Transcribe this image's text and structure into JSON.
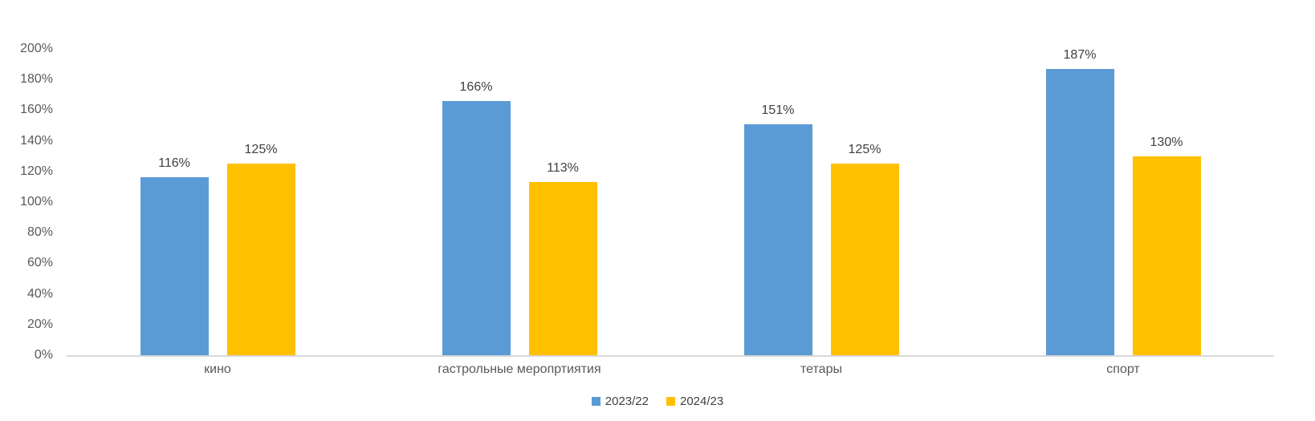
{
  "chart_data": {
    "type": "bar",
    "title": "",
    "categories": [
      "кино",
      "гастрольные меропртиятия",
      "тетары",
      "спорт"
    ],
    "series": [
      {
        "name": "2023/22",
        "color": "#5B9BD5",
        "values": [
          116,
          166,
          151,
          187
        ],
        "value_labels": [
          "116%",
          "166%",
          "151%",
          "187%"
        ]
      },
      {
        "name": "2024/23",
        "color": "#FFC000",
        "values": [
          125,
          113,
          125,
          130
        ],
        "value_labels": [
          "125%",
          "113%",
          "125%",
          "130%"
        ]
      }
    ],
    "y_axis": {
      "min": 0,
      "max": 200,
      "step": 20,
      "tick_labels": [
        "0%",
        "20%",
        "40%",
        "60%",
        "80%",
        "100%",
        "120%",
        "140%",
        "160%",
        "180%",
        "200%"
      ]
    },
    "xlabel": "",
    "ylabel": "",
    "grid": false,
    "legend_position": "bottom-center",
    "colors": {
      "background": "#FFFFFF",
      "axis_line": "#D9D9D9",
      "tick_text": "#595959",
      "data_label_text": "#404040"
    }
  }
}
